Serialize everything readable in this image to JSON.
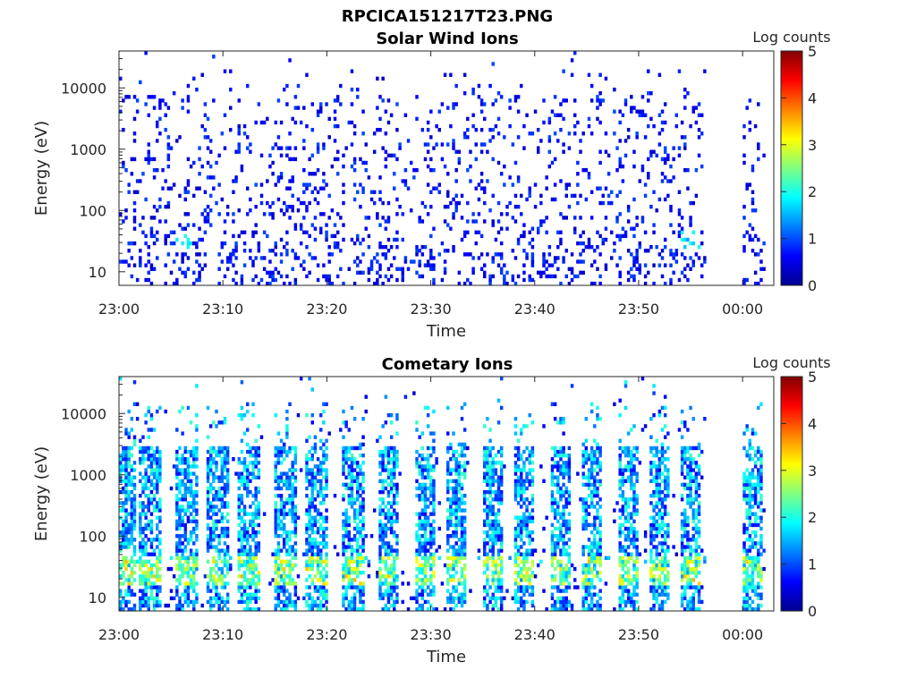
{
  "figure_title": "RPCICA151217T23.PNG",
  "colormap": [
    "#00008f",
    "#0000ff",
    "#0080ff",
    "#00ffff",
    "#80ff80",
    "#ffff00",
    "#ff8000",
    "#ff0000",
    "#800000"
  ],
  "chart_data": [
    {
      "type": "heatmap",
      "title": "Solar Wind Ions",
      "xlabel": "Time",
      "ylabel": "Energy (eV)",
      "yscale": "log",
      "ylim": [
        6,
        40000
      ],
      "xlim_minutes": [
        0,
        63
      ],
      "x_tick_labels": [
        "23:00",
        "23:10",
        "23:20",
        "23:30",
        "23:40",
        "23:50",
        "00:00"
      ],
      "x_tick_minutes": [
        0,
        10,
        20,
        30,
        40,
        50,
        60
      ],
      "y_tick_labels": [
        "10",
        "100",
        "1000",
        "10000"
      ],
      "y_tick_values": [
        10,
        100,
        1000,
        10000
      ],
      "colorbar_label": "Log counts",
      "colorbar_range": [
        0,
        5
      ],
      "colorbar_ticks": [
        "0",
        "1",
        "2",
        "3",
        "4",
        "5"
      ],
      "data_gap_minutes": [
        56.5,
        60.0
      ],
      "description_pattern": "sparse counts mostly at log level 0-1 across 10-20000 eV, with brighter patches (log ~1.5-2) near 30-40 eV around 23:06, 23:55"
    },
    {
      "type": "heatmap",
      "title": "Cometary Ions",
      "xlabel": "Time",
      "ylabel": "Energy (eV)",
      "yscale": "log",
      "ylim": [
        6,
        40000
      ],
      "xlim_minutes": [
        0,
        63
      ],
      "x_tick_labels": [
        "23:00",
        "23:10",
        "23:20",
        "23:30",
        "23:40",
        "23:50",
        "00:00"
      ],
      "x_tick_minutes": [
        0,
        10,
        20,
        30,
        40,
        50,
        60
      ],
      "y_tick_labels": [
        "10",
        "100",
        "1000",
        "10000"
      ],
      "y_tick_values": [
        10,
        100,
        1000,
        10000
      ],
      "colorbar_label": "Log counts",
      "colorbar_range": [
        0,
        5
      ],
      "colorbar_ticks": [
        "0",
        "1",
        "2",
        "3",
        "4",
        "5"
      ],
      "data_gap_minutes": [
        56.5,
        60.0
      ],
      "burst_centers_minutes": [
        0.5,
        3,
        6.5,
        9.5,
        12.5,
        16,
        19,
        22.5,
        26,
        29.5,
        32.5,
        36,
        39,
        42.5,
        45.5,
        49,
        52,
        55,
        61
      ],
      "description_pattern": "periodic vertical bursts spanning ~10 eV to several keV every ~3 minutes; peak log counts ~3 near 20-40 eV"
    }
  ]
}
